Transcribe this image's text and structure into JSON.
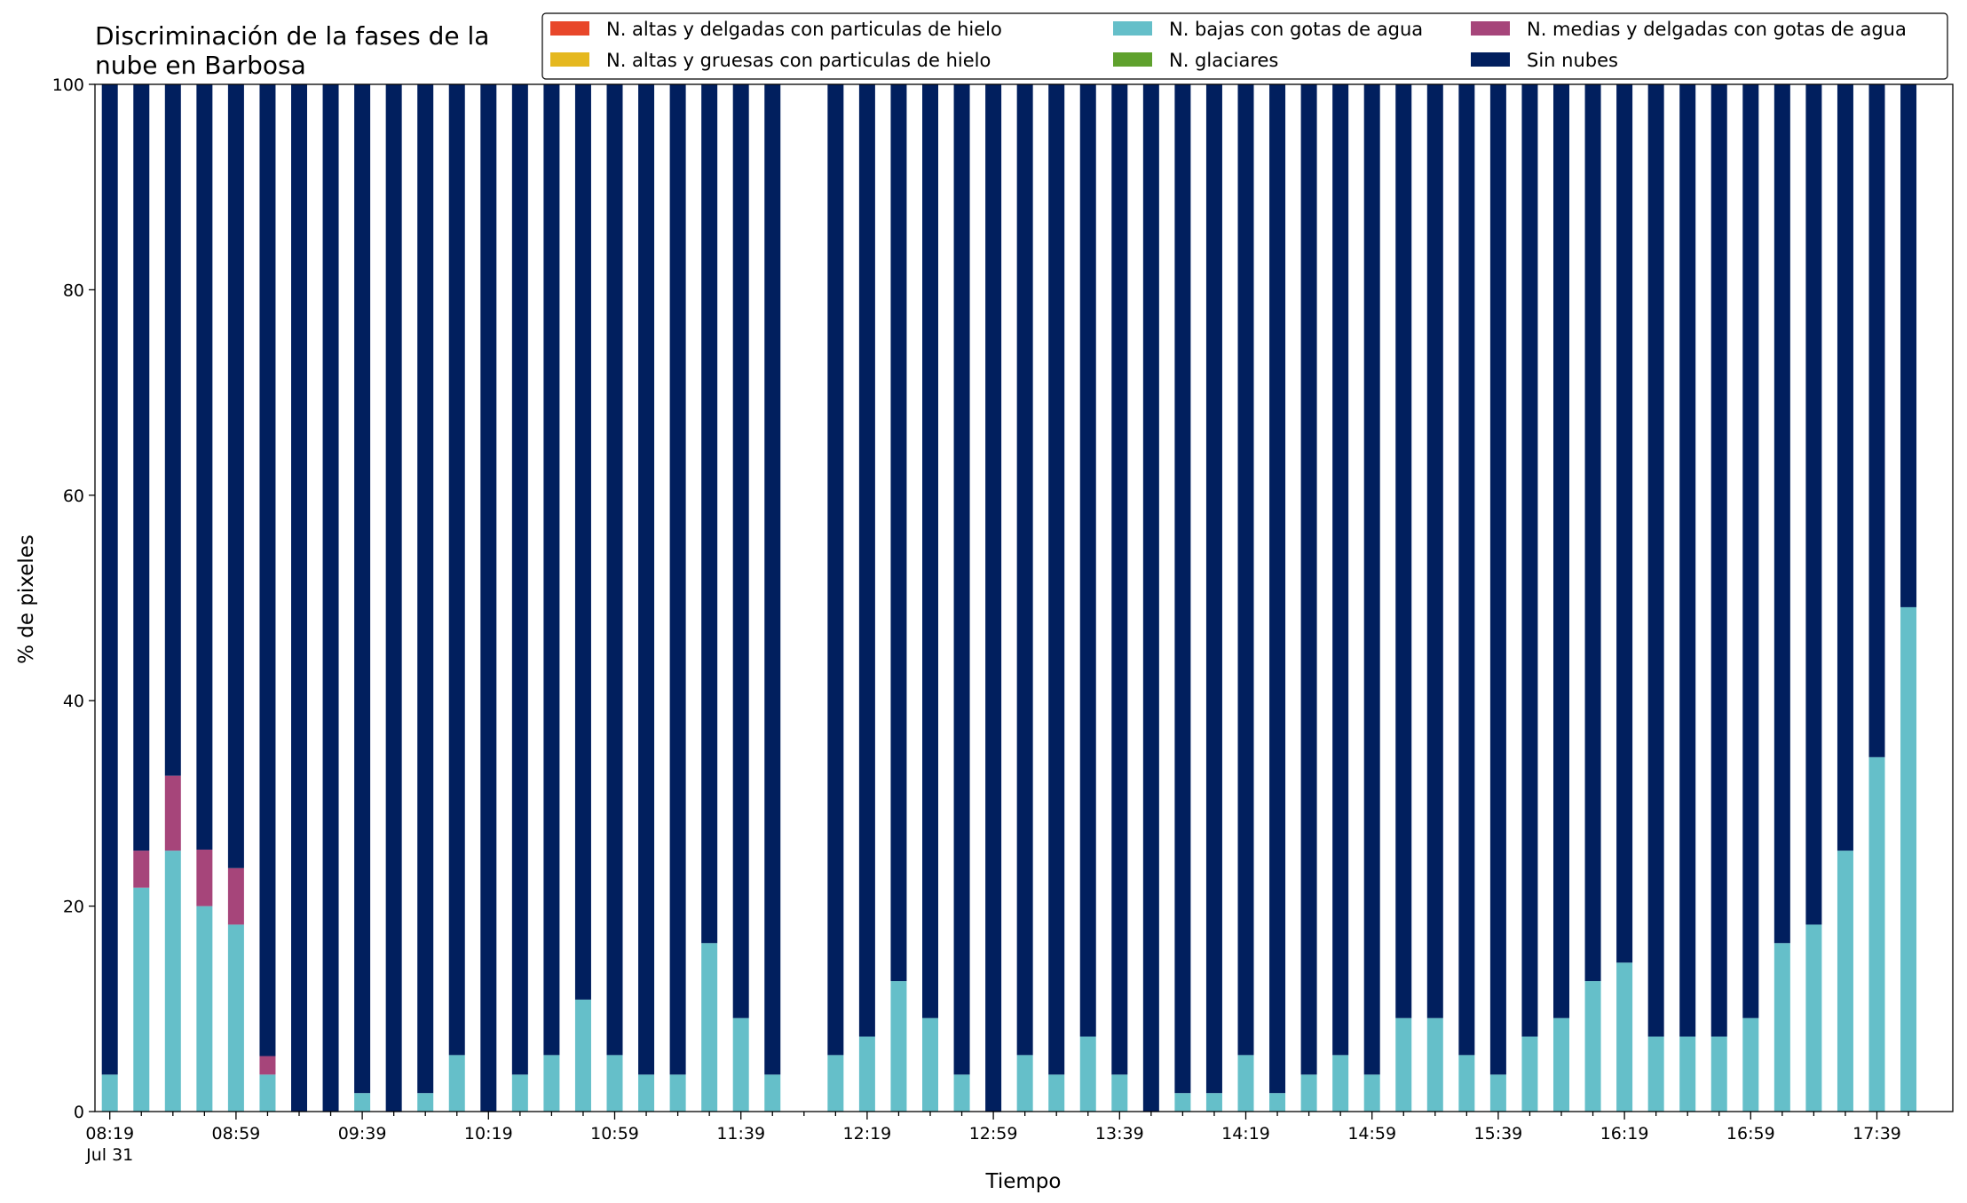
{
  "chart_data": {
    "type": "bar",
    "stacked": true,
    "title": "Discriminación de la fases de la\nnube en Barbosa",
    "xlabel": "Tiempo",
    "ylabel": "% de pixeles",
    "ylim": [
      0,
      100
    ],
    "yticks": [
      0,
      20,
      40,
      60,
      80,
      100
    ],
    "grid": false,
    "legend_position": "top-right",
    "x_start": "08:19",
    "x_step_minutes": 10,
    "x_date_label": "Jul 31",
    "x_tick_labels": [
      "08:19",
      "08:59",
      "09:39",
      "10:19",
      "10:59",
      "11:39",
      "12:19",
      "12:59",
      "13:39",
      "14:19",
      "14:59",
      "15:39",
      "16:19",
      "16:59",
      "17:39"
    ],
    "categories": [
      "08:19",
      "08:29",
      "08:39",
      "08:49",
      "08:59",
      "09:09",
      "09:19",
      "09:29",
      "09:39",
      "09:49",
      "09:59",
      "10:09",
      "10:19",
      "10:29",
      "10:39",
      "10:49",
      "10:59",
      "11:09",
      "11:19",
      "11:29",
      "11:39",
      "11:49",
      "11:59",
      "12:09",
      "12:19",
      "12:29",
      "12:39",
      "12:49",
      "12:59",
      "13:09",
      "13:19",
      "13:29",
      "13:39",
      "13:49",
      "13:59",
      "14:09",
      "14:19",
      "14:29",
      "14:39",
      "14:49",
      "14:59",
      "15:09",
      "15:19",
      "15:29",
      "15:39",
      "15:49",
      "15:59",
      "16:09",
      "16:19",
      "16:29",
      "16:39",
      "16:49",
      "16:59",
      "17:09",
      "17:19",
      "17:29",
      "17:39",
      "17:49"
    ],
    "series": [
      {
        "name": "N. altas y delgadas con particulas de hielo",
        "color": "#e8472a",
        "values": [
          0,
          0,
          0,
          0,
          0,
          0,
          0,
          0,
          0,
          0,
          0,
          0,
          0,
          0,
          0,
          0,
          0,
          0,
          0,
          0,
          0,
          0,
          null,
          0,
          0,
          0,
          0,
          0,
          0,
          0,
          0,
          0,
          0,
          0,
          0,
          0,
          0,
          0,
          0,
          0,
          0,
          0,
          0,
          0,
          0,
          0,
          0,
          0,
          0,
          0,
          0,
          0,
          0,
          0,
          0,
          0,
          0,
          0
        ]
      },
      {
        "name": "N. altas y gruesas con particulas de hielo",
        "color": "#e5b81f",
        "values": [
          0,
          0,
          0,
          0,
          0,
          0,
          0,
          0,
          0,
          0,
          0,
          0,
          0,
          0,
          0,
          0,
          0,
          0,
          0,
          0,
          0,
          0,
          null,
          0,
          0,
          0,
          0,
          0,
          0,
          0,
          0,
          0,
          0,
          0,
          0,
          0,
          0,
          0,
          0,
          0,
          0,
          0,
          0,
          0,
          0,
          0,
          0,
          0,
          0,
          0,
          0,
          0,
          0,
          0,
          0,
          0,
          0,
          0
        ]
      },
      {
        "name": "N. bajas con gotas de agua",
        "color": "#65bfc9",
        "values": [
          3.6,
          21.8,
          25.4,
          20.0,
          18.2,
          3.6,
          0,
          0,
          1.8,
          0,
          1.8,
          5.5,
          0,
          3.6,
          5.5,
          10.9,
          5.5,
          3.6,
          3.6,
          16.4,
          9.1,
          3.6,
          null,
          5.5,
          7.3,
          12.7,
          9.1,
          3.6,
          0,
          5.5,
          3.6,
          7.3,
          3.6,
          0,
          1.8,
          1.8,
          5.5,
          1.8,
          3.6,
          5.5,
          3.6,
          9.1,
          9.1,
          5.5,
          3.6,
          7.3,
          9.1,
          12.7,
          14.5,
          7.3,
          7.3,
          7.3,
          9.1,
          16.4,
          18.2,
          25.4,
          34.5,
          49.1
        ]
      },
      {
        "name": "N. glaciares",
        "color": "#5fa12d",
        "values": [
          0,
          0,
          0,
          0,
          0,
          0,
          0,
          0,
          0,
          0,
          0,
          0,
          0,
          0,
          0,
          0,
          0,
          0,
          0,
          0,
          0,
          0,
          null,
          0,
          0,
          0,
          0,
          0,
          0,
          0,
          0,
          0,
          0,
          0,
          0,
          0,
          0,
          0,
          0,
          0,
          0,
          0,
          0,
          0,
          0,
          0,
          0,
          0,
          0,
          0,
          0,
          0,
          0,
          0,
          0,
          0,
          0,
          0
        ]
      },
      {
        "name": "N. medias y delgadas con gotas de agua",
        "color": "#a6457a",
        "values": [
          0,
          3.6,
          7.3,
          5.5,
          5.5,
          1.8,
          0,
          0,
          0,
          0,
          0,
          0,
          0,
          0,
          0,
          0,
          0,
          0,
          0,
          0,
          0,
          0,
          null,
          0,
          0,
          0,
          0,
          0,
          0,
          0,
          0,
          0,
          0,
          0,
          0,
          0,
          0,
          0,
          0,
          0,
          0,
          0,
          0,
          0,
          0,
          0,
          0,
          0,
          0,
          0,
          0,
          0,
          0,
          0,
          0,
          0,
          0,
          0
        ]
      },
      {
        "name": "Sin nubes",
        "color": "#011f5e",
        "values": [
          96.4,
          74.6,
          67.3,
          74.5,
          76.3,
          94.6,
          100,
          100,
          98.2,
          100,
          98.2,
          94.5,
          100,
          96.4,
          94.5,
          89.1,
          94.5,
          96.4,
          96.4,
          83.6,
          90.9,
          96.4,
          null,
          94.5,
          92.7,
          87.3,
          90.9,
          96.4,
          100,
          94.5,
          96.4,
          92.7,
          96.4,
          100,
          98.2,
          98.2,
          94.5,
          98.2,
          96.4,
          94.5,
          96.4,
          90.9,
          90.9,
          94.5,
          96.4,
          92.7,
          90.9,
          87.3,
          85.5,
          92.7,
          92.7,
          92.7,
          90.9,
          83.6,
          81.8,
          74.6,
          65.5,
          50.9
        ]
      }
    ]
  }
}
